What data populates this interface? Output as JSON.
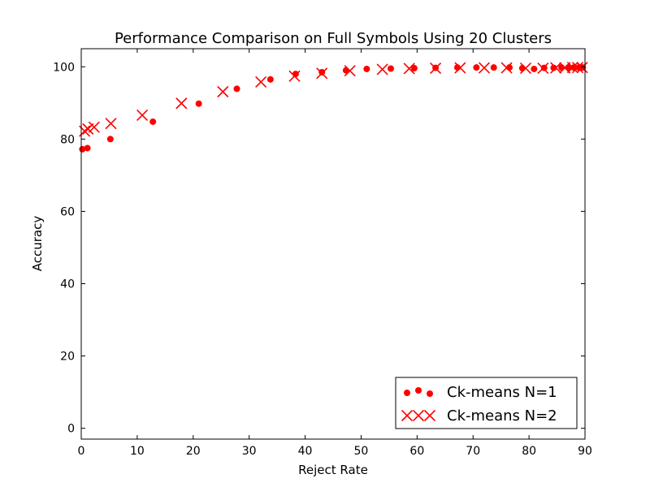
{
  "chart_data": {
    "type": "scatter",
    "title": "Performance Comparison on Full Symbols Using 20 Clusters",
    "xlabel": "Reject Rate",
    "ylabel": "Accuracy",
    "xlim": [
      0,
      90
    ],
    "ylim": [
      -3,
      105
    ],
    "xticks": [
      0,
      10,
      20,
      30,
      40,
      50,
      60,
      70,
      80,
      90
    ],
    "yticks": [
      0,
      20,
      40,
      60,
      80,
      100
    ],
    "grid": false,
    "legend_position": "bottom-right",
    "series": [
      {
        "name": "Ck-means N=1",
        "marker": "circle",
        "color": "#ff0000",
        "points": [
          [
            0.2,
            77.2
          ],
          [
            1.1,
            77.5
          ],
          [
            5.2,
            80.0
          ],
          [
            12.8,
            84.8
          ],
          [
            21.0,
            89.8
          ],
          [
            27.8,
            93.9
          ],
          [
            33.8,
            96.5
          ],
          [
            38.3,
            98.0
          ],
          [
            43.0,
            98.5
          ],
          [
            47.3,
            99.0
          ],
          [
            51.0,
            99.4
          ],
          [
            55.3,
            99.5
          ],
          [
            59.5,
            99.6
          ],
          [
            63.3,
            99.7
          ],
          [
            67.2,
            99.8
          ],
          [
            70.6,
            99.8
          ],
          [
            73.7,
            99.8
          ],
          [
            76.5,
            99.8
          ],
          [
            78.8,
            99.6
          ],
          [
            80.9,
            99.4
          ],
          [
            82.7,
            99.7
          ],
          [
            84.4,
            99.7
          ],
          [
            85.8,
            99.8
          ],
          [
            87.0,
            99.8
          ],
          [
            88.0,
            99.8
          ],
          [
            88.9,
            99.8
          ],
          [
            89.6,
            99.8
          ]
        ]
      },
      {
        "name": "Ck-means N=2",
        "marker": "x",
        "color": "#ff0000",
        "points": [
          [
            0.6,
            82.2
          ],
          [
            1.2,
            82.8
          ],
          [
            2.3,
            83.3
          ],
          [
            5.3,
            84.3
          ],
          [
            10.9,
            86.6
          ],
          [
            17.9,
            89.9
          ],
          [
            25.3,
            93.1
          ],
          [
            32.1,
            95.8
          ],
          [
            38.1,
            97.4
          ],
          [
            43.0,
            98.2
          ],
          [
            48.0,
            98.9
          ],
          [
            53.8,
            99.3
          ],
          [
            58.6,
            99.5
          ],
          [
            63.3,
            99.6
          ],
          [
            67.7,
            99.7
          ],
          [
            72.0,
            99.7
          ],
          [
            76.0,
            99.7
          ],
          [
            79.4,
            99.6
          ],
          [
            82.5,
            99.6
          ],
          [
            84.8,
            99.7
          ],
          [
            86.4,
            99.7
          ],
          [
            87.8,
            99.8
          ],
          [
            88.7,
            99.8
          ],
          [
            89.5,
            99.8
          ]
        ]
      }
    ]
  }
}
